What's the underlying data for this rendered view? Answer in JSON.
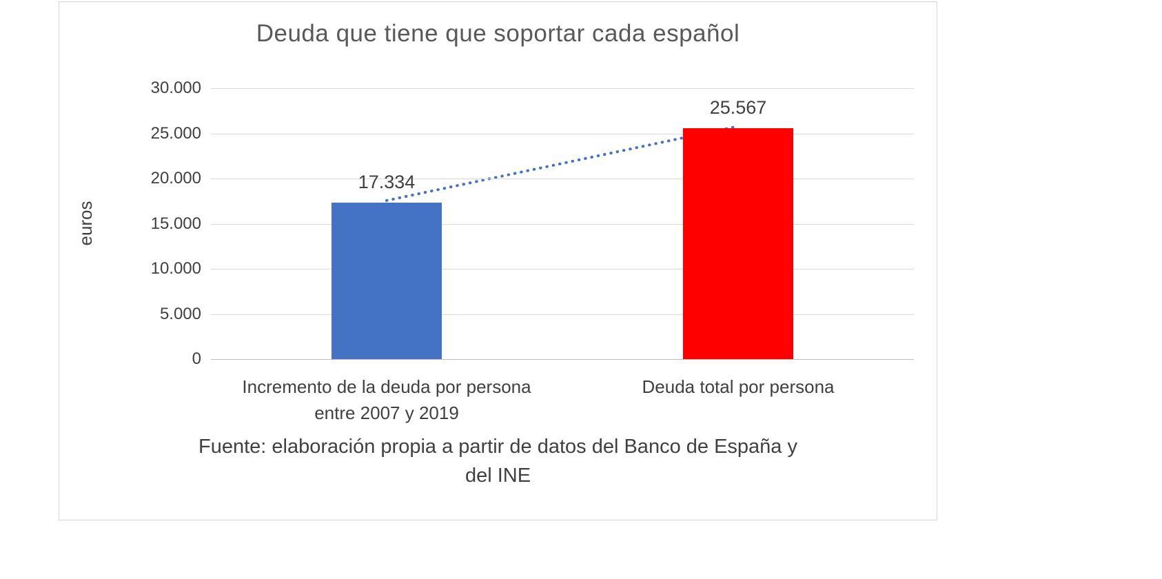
{
  "chart_data": {
    "type": "bar",
    "title": "Deuda que tiene que soportar cada español",
    "ylabel": "euros",
    "categories": [
      "Incremento de la deuda por persona\nentre 2007 y 2019",
      "Deuda total por persona"
    ],
    "values": [
      17334,
      25567
    ],
    "value_labels": [
      "17.334",
      "25.567"
    ],
    "bar_colors": [
      "#4472c4",
      "#ff0000"
    ],
    "ylim": [
      0,
      30000
    ],
    "ytick_step": 5000,
    "ytick_labels": [
      "0",
      "5.000",
      "10.000",
      "15.000",
      "20.000",
      "25.000",
      "30.000"
    ],
    "grid": true,
    "legend": "none",
    "trendline": {
      "style": "dotted",
      "color": "#4472c4",
      "connects": "tops of the two bars"
    },
    "source_note": "Fuente: elaboración propia a partir de datos del Banco de España y\ndel INE"
  },
  "colors": {
    "title_text": "#595959",
    "axis_text": "#404040",
    "gridline": "#d9d9d9",
    "axis_line": "#bfbfbf",
    "frame_border": "#d6d6d6",
    "background": "#ffffff"
  }
}
